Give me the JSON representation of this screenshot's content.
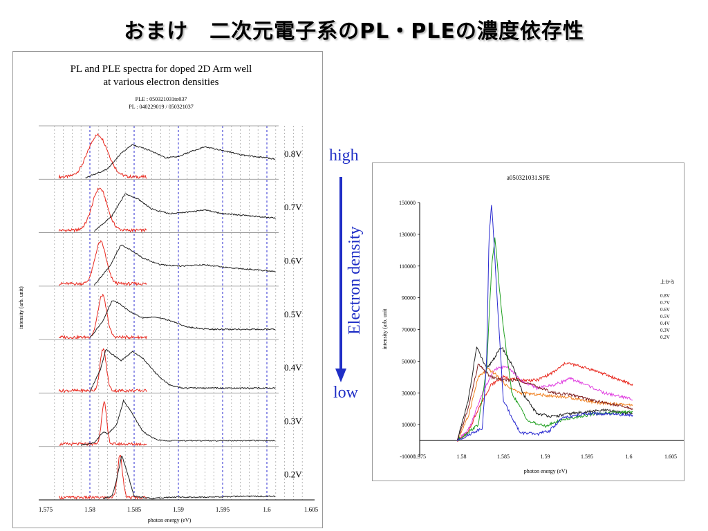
{
  "slide": {
    "title": "おまけ　二次元電子系のPL・PLEの濃度依存性"
  },
  "arrow": {
    "high_label": "high",
    "low_label": "low",
    "axis_label": "Electron density",
    "color": "#1f2ec6"
  },
  "chart_data": [
    {
      "type": "line",
      "title": "PL and PLE spectra for doped 2D Arm well",
      "title_line2": "at various electron densities",
      "subtitle": "PLE : 050321031to037",
      "subtitle2": "PL : 040229019 / 050321037",
      "xlabel": "photon energy (eV)",
      "ylabel": "intensity (arb. unit)",
      "xlim": [
        1.575,
        1.605
      ],
      "xticks": [
        "1.575",
        "1.58",
        "1.585",
        "1.59",
        "1.595",
        "1.6",
        "1.605"
      ],
      "grid": "dotted vertical lines every 0.001 eV, blue dashed every 0.005 eV",
      "pl_color": "#e8281e",
      "ple_color": "#202020",
      "grid_blue": "#2a2ad0",
      "panels": [
        {
          "label": "0.8V",
          "pl": {
            "center": 1.5809,
            "width": 0.0016,
            "start": 1.5765,
            "end": 1.5865
          },
          "ple": {
            "x": [
              1.5795,
              1.582,
              1.5835,
              1.5848,
              1.587,
              1.5885,
              1.59,
              1.5915,
              1.593,
              1.595,
              1.597,
              1.6,
              1.601
            ],
            "y": [
              0.0,
              0.2,
              0.55,
              0.75,
              0.6,
              0.45,
              0.48,
              0.6,
              0.7,
              0.62,
              0.52,
              0.45,
              0.42
            ]
          }
        },
        {
          "label": "0.7V",
          "pl": {
            "center": 1.5811,
            "width": 0.0012,
            "start": 1.5765,
            "end": 1.5865
          },
          "ple": {
            "x": [
              1.5805,
              1.5825,
              1.584,
              1.5855,
              1.587,
              1.589,
              1.5905,
              1.593,
              1.595,
              1.598,
              1.601
            ],
            "y": [
              0.0,
              0.35,
              0.85,
              0.72,
              0.5,
              0.4,
              0.42,
              0.48,
              0.4,
              0.35,
              0.3
            ]
          }
        },
        {
          "label": "0.6V",
          "pl": {
            "center": 1.5812,
            "width": 0.0009,
            "start": 1.5765,
            "end": 1.5865
          },
          "ple": {
            "x": [
              1.5805,
              1.5822,
              1.5835,
              1.5845,
              1.586,
              1.588,
              1.59,
              1.593,
              1.596,
              1.601
            ],
            "y": [
              0.0,
              0.4,
              0.9,
              0.8,
              0.6,
              0.45,
              0.42,
              0.45,
              0.38,
              0.3
            ]
          }
        },
        {
          "label": "0.5V",
          "pl": {
            "center": 1.5814,
            "width": 0.0007,
            "start": 1.5765,
            "end": 1.5865
          },
          "ple": {
            "x": [
              1.58,
              1.5815,
              1.5825,
              1.5832,
              1.5845,
              1.586,
              1.5875,
              1.589,
              1.591,
              1.5935,
              1.601
            ],
            "y": [
              0.0,
              0.4,
              0.85,
              0.8,
              0.6,
              0.45,
              0.48,
              0.4,
              0.25,
              0.2,
              0.2
            ]
          }
        },
        {
          "label": "0.4V",
          "pl": {
            "center": 1.5815,
            "width": 0.0005,
            "start": 1.5765,
            "end": 1.5865
          },
          "ple": {
            "x": [
              1.58,
              1.5812,
              1.5818,
              1.5825,
              1.5835,
              1.5848,
              1.586,
              1.5875,
              1.589,
              1.5905,
              1.601
            ],
            "y": [
              0.0,
              0.5,
              0.95,
              0.85,
              0.7,
              0.9,
              0.75,
              0.4,
              0.15,
              0.08,
              0.08
            ]
          }
        },
        {
          "label": "0.3V",
          "pl": {
            "center": 1.5816,
            "width": 0.0004,
            "start": 1.5765,
            "end": 1.5865
          },
          "ple": {
            "x": [
              1.579,
              1.5805,
              1.5815,
              1.582,
              1.583,
              1.5838,
              1.5845,
              1.586,
              1.5875,
              1.589,
              1.601
            ],
            "y": [
              0.0,
              0.05,
              0.3,
              0.25,
              0.45,
              1.0,
              0.8,
              0.3,
              0.12,
              0.1,
              0.1
            ]
          }
        },
        {
          "label": "0.2V",
          "pl": {
            "center": 1.5834,
            "width": 0.0004,
            "start": 1.5765,
            "end": 1.5865
          },
          "ple": {
            "x": [
              1.5815,
              1.5825,
              1.583,
              1.5836,
              1.5842,
              1.585,
              1.587,
              1.589,
              1.593,
              1.597,
              1.601
            ],
            "y": [
              0.0,
              0.05,
              0.4,
              0.98,
              0.6,
              0.05,
              0.0,
              0.03,
              0.03,
              0.05,
              0.05
            ]
          }
        }
      ]
    },
    {
      "type": "line",
      "title": "a050321031.SPE",
      "xlabel": "photon energy (eV)",
      "ylabel": "intensity (arb. unit",
      "xlim": [
        1.575,
        1.605
      ],
      "ylim": [
        -10000,
        150000
      ],
      "xticks": [
        "1.575",
        "1.58",
        "1.585",
        "1.59",
        "1.595",
        "1.6",
        "1.605"
      ],
      "yticks": [
        "-10000",
        "10000",
        "30000",
        "50000",
        "70000",
        "90000",
        "110000",
        "130000",
        "150000"
      ],
      "legend_title": "上から",
      "series": [
        {
          "name": "0.8V",
          "color": "#e8281e",
          "x": [
            1.5795,
            1.5808,
            1.582,
            1.5835,
            1.585,
            1.587,
            1.589,
            1.591,
            1.5925,
            1.594,
            1.596,
            1.598,
            1.6005
          ],
          "y": [
            0,
            5000,
            20000,
            35000,
            40000,
            38000,
            38000,
            43000,
            49000,
            47000,
            44000,
            40000,
            35000
          ]
        },
        {
          "name": "0.7V",
          "color": "#e040e0",
          "x": [
            1.5795,
            1.581,
            1.5825,
            1.584,
            1.5855,
            1.587,
            1.589,
            1.591,
            1.593,
            1.595,
            1.597,
            1.6005
          ],
          "y": [
            0,
            8000,
            30000,
            45000,
            47000,
            38000,
            33000,
            35000,
            39000,
            35000,
            30000,
            26000
          ]
        },
        {
          "name": "0.6V",
          "color": "#f08020",
          "x": [
            1.5795,
            1.5808,
            1.582,
            1.5832,
            1.584,
            1.5855,
            1.587,
            1.589,
            1.591,
            1.593,
            1.596,
            1.6005
          ],
          "y": [
            0,
            15000,
            40000,
            45000,
            42000,
            34000,
            30000,
            29000,
            28000,
            27000,
            24000,
            22000
          ]
        },
        {
          "name": "0.5V",
          "color": "#802020",
          "x": [
            1.5795,
            1.5808,
            1.582,
            1.5835,
            1.585,
            1.587,
            1.589,
            1.591,
            1.593,
            1.596,
            1.6005
          ],
          "y": [
            0,
            20000,
            48000,
            40000,
            38000,
            38000,
            34000,
            30000,
            29000,
            25000,
            20000
          ]
        },
        {
          "name": "0.4V",
          "color": "#202020",
          "x": [
            1.5795,
            1.5808,
            1.5818,
            1.583,
            1.5848,
            1.586,
            1.5875,
            1.589,
            1.591,
            1.593,
            1.597,
            1.6005
          ],
          "y": [
            0,
            25000,
            59000,
            45000,
            59000,
            48000,
            28000,
            17000,
            15000,
            17000,
            19000,
            17000
          ]
        },
        {
          "name": "0.3V",
          "color": "#20a020",
          "x": [
            1.5795,
            1.582,
            1.583,
            1.5836,
            1.584,
            1.5848,
            1.586,
            1.588,
            1.59,
            1.592,
            1.596,
            1.6005
          ],
          "y": [
            0,
            10000,
            45000,
            110000,
            128000,
            80000,
            30000,
            12000,
            9000,
            13000,
            17000,
            18000
          ]
        },
        {
          "name": "0.2V",
          "color": "#2a2ad0",
          "x": [
            1.5795,
            1.5825,
            1.583,
            1.5833,
            1.5836,
            1.5842,
            1.585,
            1.587,
            1.589,
            1.5905,
            1.592,
            1.595,
            1.6005
          ],
          "y": [
            0,
            8000,
            50000,
            130000,
            150000,
            95000,
            25000,
            5000,
            4000,
            6000,
            14000,
            17000,
            16000
          ]
        }
      ]
    }
  ]
}
